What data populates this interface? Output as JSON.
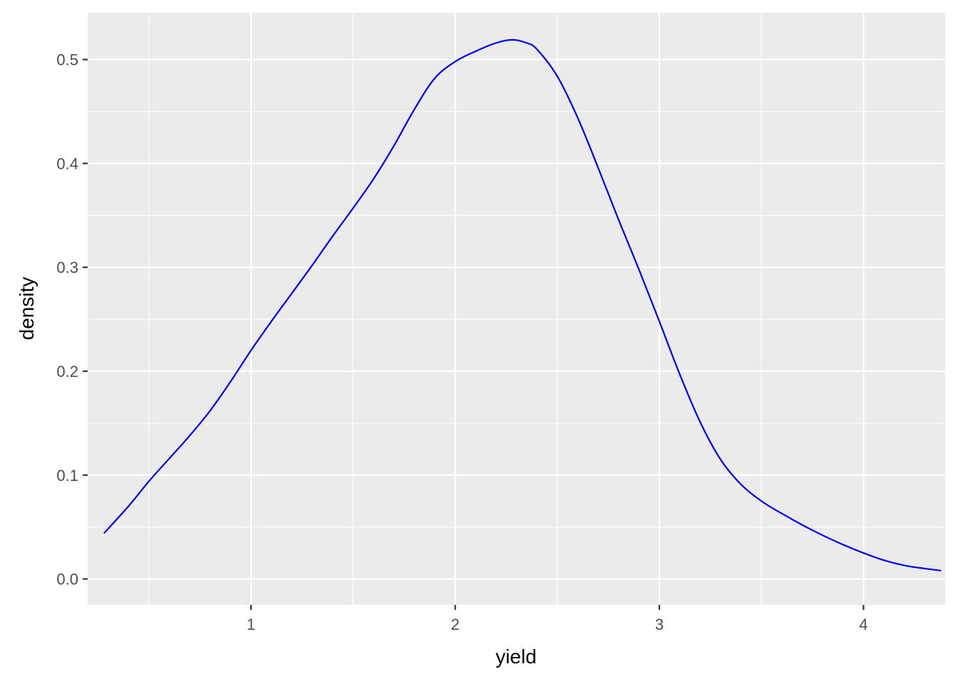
{
  "chart_data": {
    "type": "line",
    "title": "",
    "xlabel": "yield",
    "ylabel": "density",
    "xlim": [
      0.2,
      4.4
    ],
    "ylim": [
      -0.025,
      0.545
    ],
    "x_ticks": [
      1,
      2,
      3,
      4
    ],
    "x_tick_labels": [
      "1",
      "2",
      "3",
      "4"
    ],
    "y_ticks": [
      0.0,
      0.1,
      0.2,
      0.3,
      0.4,
      0.5
    ],
    "y_tick_labels": [
      "0.0",
      "0.1",
      "0.2",
      "0.3",
      "0.4",
      "0.5"
    ],
    "grid": true,
    "background_color": "#ebebeb",
    "series": [
      {
        "color": "#0000ff",
        "x": [
          0.28,
          0.4,
          0.5,
          0.6,
          0.7,
          0.8,
          0.9,
          1.0,
          1.1,
          1.2,
          1.3,
          1.4,
          1.5,
          1.6,
          1.7,
          1.8,
          1.9,
          2.0,
          2.1,
          2.2,
          2.28,
          2.35,
          2.4,
          2.5,
          2.6,
          2.7,
          2.8,
          2.9,
          3.0,
          3.1,
          3.2,
          3.3,
          3.4,
          3.5,
          3.6,
          3.7,
          3.8,
          3.9,
          4.0,
          4.1,
          4.2,
          4.3,
          4.38
        ],
        "y": [
          0.044,
          0.07,
          0.094,
          0.116,
          0.138,
          0.162,
          0.19,
          0.22,
          0.248,
          0.275,
          0.302,
          0.33,
          0.357,
          0.385,
          0.417,
          0.452,
          0.482,
          0.498,
          0.508,
          0.516,
          0.519,
          0.516,
          0.51,
          0.484,
          0.444,
          0.396,
          0.346,
          0.298,
          0.248,
          0.197,
          0.151,
          0.115,
          0.091,
          0.075,
          0.063,
          0.052,
          0.042,
          0.033,
          0.025,
          0.018,
          0.013,
          0.01,
          0.008
        ]
      }
    ]
  }
}
